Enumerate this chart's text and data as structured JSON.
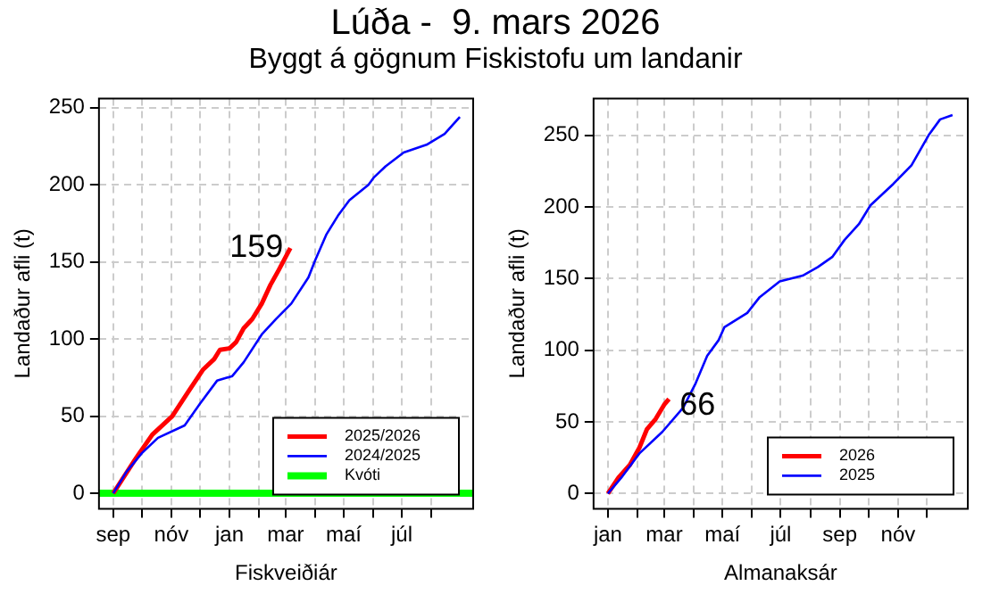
{
  "chart_data": [
    {
      "type": "line",
      "title": "Lúða -  9. mars 2026",
      "subtitle": "Byggt á gögnum Fiskistofu um landanir",
      "xlabel": "Fiskveiðiár",
      "ylabel": "Landaður afli (t)",
      "xlim": [
        "2025-08-17",
        "2026-09-14"
      ],
      "ylim": [
        -10,
        256
      ],
      "xticks": [
        {
          "value": "2025-09-01",
          "label": "sep"
        },
        {
          "value": "2025-10-01",
          "label": null
        },
        {
          "value": "2025-11-01",
          "label": "nóv"
        },
        {
          "value": "2025-12-01",
          "label": null
        },
        {
          "value": "2026-01-01",
          "label": "jan"
        },
        {
          "value": "2026-02-01",
          "label": null
        },
        {
          "value": "2026-03-01",
          "label": "mar"
        },
        {
          "value": "2026-04-01",
          "label": null
        },
        {
          "value": "2026-05-01",
          "label": "maí"
        },
        {
          "value": "2026-06-01",
          "label": null
        },
        {
          "value": "2026-07-01",
          "label": "júl"
        },
        {
          "value": "2026-08-01",
          "label": null
        }
      ],
      "yticks": [
        0,
        50,
        100,
        150,
        200,
        250
      ],
      "grid": true,
      "legend": "bottom right",
      "marker": "none",
      "line_style": "solid",
      "series": [
        {
          "name": "2025/2026",
          "color": "#ff0000",
          "x": [
            "2025-09-01",
            "2025-09-24",
            "2025-10-12",
            "2025-11-02",
            "2025-11-19",
            "2025-12-04",
            "2025-12-16",
            "2025-12-22",
            "2026-01-01",
            "2026-01-08",
            "2026-01-16",
            "2026-01-25",
            "2026-02-04",
            "2026-02-13",
            "2026-02-22",
            "2026-03-06"
          ],
          "values": [
            0,
            22,
            38,
            50,
            66,
            80,
            87,
            93,
            94,
            98,
            107,
            113,
            123,
            135,
            145,
            159
          ]
        },
        {
          "name": "2024/2025",
          "color": "#0000ff",
          "x": [
            "2025-09-01",
            "2025-09-15",
            "2025-10-01",
            "2025-10-18",
            "2025-11-15",
            "2025-12-01",
            "2025-12-19",
            "2026-01-04",
            "2026-01-16",
            "2026-02-04",
            "2026-02-19",
            "2026-03-07",
            "2026-03-25",
            "2026-04-01",
            "2026-04-13",
            "2026-04-25",
            "2026-05-07",
            "2026-05-27",
            "2026-06-02",
            "2026-06-14",
            "2026-07-03",
            "2026-07-27",
            "2026-08-15",
            "2026-08-31"
          ],
          "values": [
            0,
            14,
            26,
            36,
            44,
            58,
            73,
            76,
            85,
            103,
            113,
            123,
            140,
            151,
            168,
            180,
            190,
            200,
            205,
            212,
            221,
            226,
            233,
            244
          ]
        },
        {
          "name": "Kvóti",
          "color": "#00ff00",
          "x": [
            "2025-08-17",
            "2026-09-14"
          ],
          "values": [
            0,
            0
          ]
        }
      ],
      "annotations": [
        {
          "text": "159",
          "x": "2026-03-06",
          "y": 159
        }
      ]
    },
    {
      "type": "line",
      "xlabel": "Almanaksár",
      "ylabel": "Landaður afli (t)",
      "xlim": [
        "2025-12-17",
        "2027-01-13"
      ],
      "ylim": [
        -10.6,
        275.6
      ],
      "xticks": [
        {
          "value": "2026-01-01",
          "label": "jan"
        },
        {
          "value": "2026-02-01",
          "label": null
        },
        {
          "value": "2026-03-01",
          "label": "mar"
        },
        {
          "value": "2026-04-01",
          "label": null
        },
        {
          "value": "2026-05-01",
          "label": "maí"
        },
        {
          "value": "2026-06-01",
          "label": null
        },
        {
          "value": "2026-07-01",
          "label": "júl"
        },
        {
          "value": "2026-08-01",
          "label": null
        },
        {
          "value": "2026-09-01",
          "label": "sep"
        },
        {
          "value": "2026-10-01",
          "label": null
        },
        {
          "value": "2026-11-01",
          "label": "nóv"
        },
        {
          "value": "2026-12-01",
          "label": null
        }
      ],
      "yticks": [
        0,
        50,
        100,
        150,
        200,
        250
      ],
      "grid": true,
      "legend": "bottom right",
      "marker": "none",
      "line_style": "solid",
      "series": [
        {
          "name": "2026",
          "color": "#ff0000",
          "x": [
            "2026-01-01",
            "2026-01-12",
            "2026-01-24",
            "2026-02-03",
            "2026-02-11",
            "2026-02-20",
            "2026-03-01",
            "2026-03-06"
          ],
          "values": [
            0,
            11,
            20,
            32,
            45,
            52,
            62,
            66
          ]
        },
        {
          "name": "2025",
          "color": "#0000ff",
          "x": [
            "2026-01-01",
            "2026-01-15",
            "2026-02-03",
            "2026-02-27",
            "2026-03-21",
            "2026-04-03",
            "2026-04-15",
            "2026-04-27",
            "2026-05-03",
            "2026-05-27",
            "2026-06-09",
            "2026-06-30",
            "2026-07-24",
            "2026-08-09",
            "2026-08-24",
            "2026-09-06",
            "2026-09-21",
            "2026-10-03",
            "2026-10-27",
            "2026-11-15",
            "2026-12-03",
            "2026-12-15",
            "2026-12-28"
          ],
          "values": [
            0,
            11,
            28,
            43,
            60,
            77,
            96,
            107,
            116,
            126,
            137,
            148,
            152,
            158,
            165,
            177,
            188,
            201,
            216,
            229,
            250,
            261,
            264
          ]
        }
      ],
      "annotations": [
        {
          "text": "66",
          "x": "2026-03-06",
          "y": 66
        }
      ]
    }
  ]
}
